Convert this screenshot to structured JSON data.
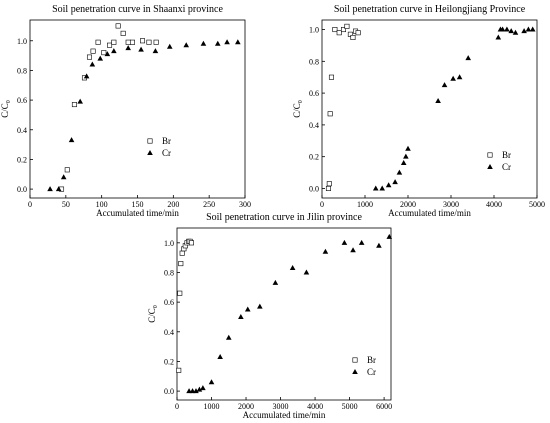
{
  "chart_data": [
    {
      "type": "scatter",
      "title": "Soil penetration curve in Shaanxi province",
      "xlabel": "Accumulated time/min",
      "ylabel_main": "C/C",
      "ylabel_sub": "0",
      "xlim": [
        0,
        300
      ],
      "ylim": [
        -0.06,
        1.14
      ],
      "xticks": [
        0,
        50,
        100,
        150,
        200,
        250,
        300
      ],
      "yticks": [
        0.0,
        0.2,
        0.4,
        0.6,
        0.8,
        1.0
      ],
      "xtick_labels": [
        "0",
        "50",
        "100",
        "150",
        "200",
        "250",
        "300"
      ],
      "ytick_labels": [
        "0.0",
        "0.2",
        "0.4",
        "0.6",
        "0.8",
        "1.0"
      ],
      "legend_position": "right",
      "series": [
        {
          "name": "Br",
          "marker": "square-open",
          "x": [
            44,
            52,
            62,
            76,
            83,
            88,
            95,
            103,
            111,
            117,
            123,
            130,
            137,
            143,
            157,
            166,
            176
          ],
          "y": [
            0.0,
            0.13,
            0.57,
            0.75,
            0.89,
            0.93,
            0.99,
            0.92,
            0.97,
            0.99,
            1.1,
            1.05,
            0.99,
            0.99,
            1.0,
            0.99,
            0.99
          ]
        },
        {
          "name": "Cr",
          "marker": "triangle-filled",
          "x": [
            28,
            40,
            47,
            58,
            70,
            79,
            87,
            98,
            108,
            117,
            137,
            155,
            175,
            195,
            218,
            242,
            262,
            275,
            290
          ],
          "y": [
            0.0,
            0.0,
            0.08,
            0.33,
            0.59,
            0.76,
            0.84,
            0.88,
            0.91,
            0.93,
            0.95,
            0.94,
            0.93,
            0.96,
            0.97,
            0.98,
            0.98,
            0.99,
            0.99
          ]
        }
      ]
    },
    {
      "type": "scatter",
      "title": "Soil penetration curve in Heilongjiang Province",
      "xlabel": "Accumulated time/min",
      "ylabel_main": "C/C",
      "ylabel_sub": "0",
      "xlim": [
        0,
        5000
      ],
      "ylim": [
        -0.06,
        1.06
      ],
      "xticks": [
        0,
        1000,
        2000,
        3000,
        4000,
        5000
      ],
      "yticks": [
        0.0,
        0.2,
        0.4,
        0.6,
        0.8,
        1.0
      ],
      "xtick_labels": [
        "0",
        "1000",
        "2000",
        "3000",
        "4000",
        "5000"
      ],
      "ytick_labels": [
        "0.0",
        "0.2",
        "0.4",
        "0.6",
        "0.8",
        "1.0"
      ],
      "legend_position": "right",
      "series": [
        {
          "name": "Br",
          "marker": "square-open",
          "x": [
            150,
            170,
            190,
            220,
            300,
            400,
            500,
            580,
            660,
            720,
            780,
            840
          ],
          "y": [
            0.0,
            0.03,
            0.47,
            0.7,
            1.0,
            0.98,
            1.0,
            1.02,
            0.97,
            0.95,
            0.99,
            0.98
          ]
        },
        {
          "name": "Cr",
          "marker": "triangle-filled",
          "x": [
            1250,
            1400,
            1550,
            1700,
            1800,
            1900,
            1950,
            2000,
            2700,
            2850,
            3050,
            3200,
            3400,
            4100,
            4150,
            4200,
            4300,
            4400,
            4500,
            4700,
            4800,
            4900
          ],
          "y": [
            0.0,
            0.0,
            0.02,
            0.04,
            0.1,
            0.16,
            0.2,
            0.25,
            0.55,
            0.65,
            0.69,
            0.7,
            0.82,
            0.95,
            1.0,
            1.0,
            1.0,
            0.99,
            0.98,
            0.99,
            1.0,
            1.0
          ]
        }
      ]
    },
    {
      "type": "scatter",
      "title": "Soil penetration curve in Jilin province",
      "xlabel": "Accumulated time/min",
      "ylabel_main": "C/C",
      "ylabel_sub": "0",
      "xlim": [
        0,
        6200
      ],
      "ylim": [
        -0.06,
        1.1
      ],
      "xticks": [
        0,
        1000,
        2000,
        3000,
        4000,
        5000,
        6000
      ],
      "yticks": [
        0.0,
        0.2,
        0.4,
        0.6,
        0.8,
        1.0
      ],
      "xtick_labels": [
        "0",
        "1000",
        "2000",
        "3000",
        "4000",
        "5000",
        "6000"
      ],
      "ytick_labels": [
        "0.0",
        "0.2",
        "0.4",
        "0.6",
        "0.8",
        "1.0"
      ],
      "legend_position": "right",
      "series": [
        {
          "name": "Br",
          "marker": "square-open",
          "x": [
            50,
            80,
            110,
            150,
            200,
            240,
            290,
            340,
            380,
            420
          ],
          "y": [
            0.14,
            0.66,
            0.86,
            0.93,
            0.96,
            0.98,
            1.0,
            1.01,
            1.01,
            1.0
          ]
        },
        {
          "name": "Cr",
          "marker": "triangle-filled",
          "x": [
            350,
            450,
            550,
            650,
            750,
            1000,
            1250,
            1500,
            1850,
            2050,
            2400,
            2850,
            3350,
            3750,
            4300,
            4850,
            5100,
            5350,
            5850,
            6150
          ],
          "y": [
            0.0,
            0.0,
            0.0,
            0.01,
            0.02,
            0.06,
            0.23,
            0.36,
            0.5,
            0.55,
            0.57,
            0.73,
            0.83,
            0.8,
            0.94,
            1.0,
            0.95,
            1.0,
            0.98,
            1.04
          ]
        }
      ]
    }
  ]
}
